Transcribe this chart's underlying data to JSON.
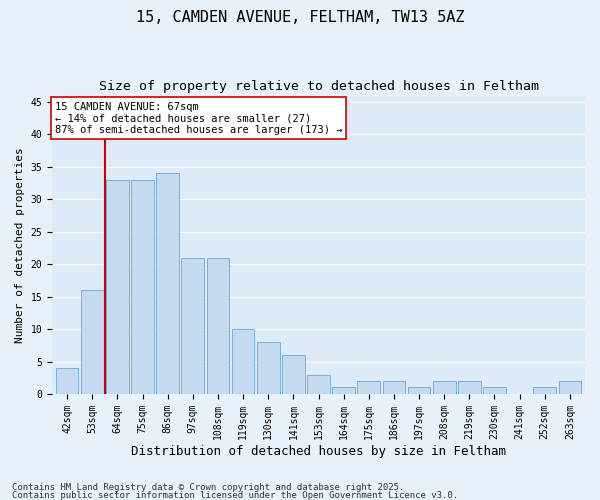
{
  "title1": "15, CAMDEN AVENUE, FELTHAM, TW13 5AZ",
  "title2": "Size of property relative to detached houses in Feltham",
  "xlabel": "Distribution of detached houses by size in Feltham",
  "ylabel": "Number of detached properties",
  "categories": [
    "42sqm",
    "53sqm",
    "64sqm",
    "75sqm",
    "86sqm",
    "97sqm",
    "108sqm",
    "119sqm",
    "130sqm",
    "141sqm",
    "153sqm",
    "164sqm",
    "175sqm",
    "186sqm",
    "197sqm",
    "208sqm",
    "219sqm",
    "230sqm",
    "241sqm",
    "252sqm",
    "263sqm"
  ],
  "values": [
    4,
    16,
    33,
    33,
    34,
    21,
    21,
    10,
    8,
    6,
    3,
    1,
    2,
    2,
    1,
    2,
    2,
    1,
    0,
    1,
    2
  ],
  "bar_color": "#c5d9f0",
  "bar_edge_color": "#7bafd4",
  "background_color": "#ddeaf7",
  "fig_background_color": "#e8f0fa",
  "grid_color": "#ffffff",
  "vline_color": "#cc0000",
  "annotation_text": "15 CAMDEN AVENUE: 67sqm\n← 14% of detached houses are smaller (27)\n87% of semi-detached houses are larger (173) →",
  "annotation_box_color": "#ffffff",
  "annotation_box_edge": "#cc0000",
  "ylim": [
    0,
    46
  ],
  "yticks": [
    0,
    5,
    10,
    15,
    20,
    25,
    30,
    35,
    40,
    45
  ],
  "footer1": "Contains HM Land Registry data © Crown copyright and database right 2025.",
  "footer2": "Contains public sector information licensed under the Open Government Licence v3.0.",
  "title1_fontsize": 11,
  "title2_fontsize": 9.5,
  "xlabel_fontsize": 9,
  "ylabel_fontsize": 8,
  "tick_fontsize": 7,
  "annotation_fontsize": 7.5,
  "footer_fontsize": 6.5
}
